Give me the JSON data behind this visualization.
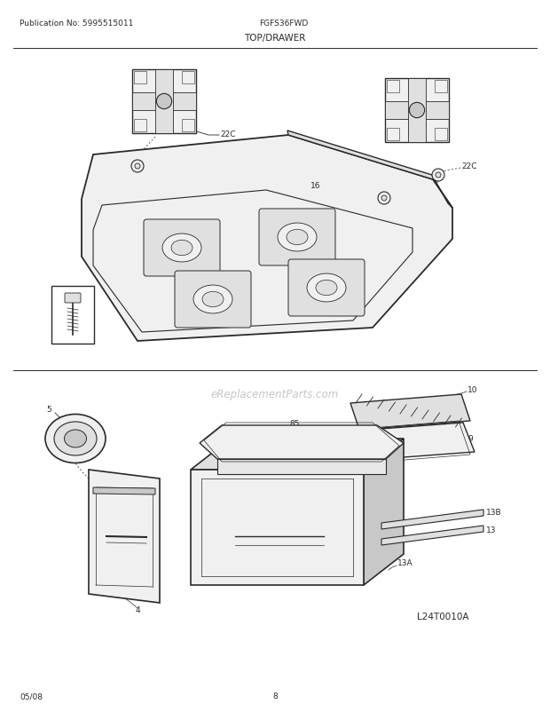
{
  "pub_no": "Publication No: 5995515011",
  "model": "FGFS36FWD",
  "section": "TOP/DRAWER",
  "watermark": "eReplacementParts.com",
  "diagram_code": "L24T0010A",
  "date": "05/08",
  "page": "8",
  "bg_color": "#ffffff",
  "line_color": "#2a2a2a",
  "fill_light": "#f0f0f0",
  "fill_mid": "#e0e0e0",
  "fill_dark": "#c8c8c8"
}
